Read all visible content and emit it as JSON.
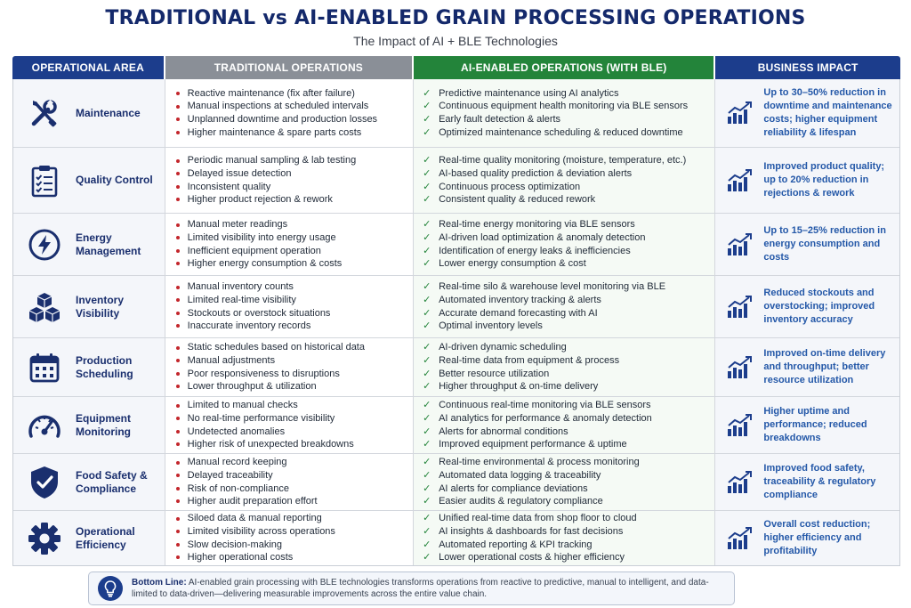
{
  "title": "TRADITIONAL vs AI-ENABLED GRAIN PROCESSING OPERATIONS",
  "subtitle": "The Impact of AI + BLE Technologies",
  "headers": {
    "area": "OPERATIONAL AREA",
    "traditional": "TRADITIONAL OPERATIONS",
    "ai": "AI-ENABLED OPERATIONS (WITH BLE)",
    "business": "BUSINESS IMPACT"
  },
  "colors": {
    "navy": "#1c3d8c",
    "gray": "#8a8f97",
    "green": "#23843a",
    "bullet_red": "#c3262c",
    "impact_blue": "#2458a8"
  },
  "rows": [
    {
      "area": "Maintenance",
      "icon": "wrench-screwdriver-icon",
      "traditional": [
        "Reactive maintenance (fix after failure)",
        "Manual inspections at scheduled intervals",
        "Unplanned downtime and production losses",
        "Higher maintenance & spare parts costs"
      ],
      "ai": [
        "Predictive maintenance using AI analytics",
        "Continuous equipment health monitoring via BLE sensors",
        "Early fault detection & alerts",
        "Optimized maintenance scheduling & reduced downtime"
      ],
      "impact": "Up to 30–50% reduction in downtime and maintenance costs; higher equipment reliability & lifespan"
    },
    {
      "area": "Quality Control",
      "icon": "clipboard-checklist-icon",
      "traditional": [
        "Periodic manual sampling & lab testing",
        "Delayed issue detection",
        "Inconsistent quality",
        "Higher product rejection & rework"
      ],
      "ai": [
        "Real-time quality monitoring (moisture, temperature, etc.)",
        "AI-based quality prediction & deviation alerts",
        "Continuous process optimization",
        "Consistent quality & reduced rework"
      ],
      "impact": "Improved product quality; up to 20% reduction in rejections & rework"
    },
    {
      "area": "Energy Management",
      "icon": "lightning-bolt-icon",
      "traditional": [
        "Manual meter readings",
        "Limited visibility into energy usage",
        "Inefficient equipment operation",
        "Higher energy consumption & costs"
      ],
      "ai": [
        "Real-time energy monitoring via BLE sensors",
        "AI-driven load optimization & anomaly detection",
        "Identification of energy leaks & inefficiencies",
        "Lower energy consumption & cost"
      ],
      "impact": "Up to 15–25% reduction in energy consumption and costs"
    },
    {
      "area": "Inventory Visibility",
      "icon": "stacked-boxes-icon",
      "traditional": [
        "Manual inventory counts",
        "Limited real-time visibility",
        "Stockouts or overstock situations",
        "Inaccurate inventory records"
      ],
      "ai": [
        "Real-time silo & warehouse level monitoring via BLE",
        "Automated inventory tracking & alerts",
        "Accurate demand forecasting with AI",
        "Optimal inventory levels"
      ],
      "impact": "Reduced stockouts and overstocking; improved inventory accuracy"
    },
    {
      "area": "Production Scheduling",
      "icon": "calendar-icon",
      "traditional": [
        "Static schedules based on historical data",
        "Manual adjustments",
        "Poor responsiveness to disruptions",
        "Lower throughput & utilization"
      ],
      "ai": [
        "AI-driven dynamic scheduling",
        "Real-time data from equipment & process",
        "Better resource utilization",
        "Higher throughput & on-time delivery"
      ],
      "impact": "Improved on-time delivery and throughput; better resource utilization"
    },
    {
      "area": "Equipment Monitoring",
      "icon": "gauge-icon",
      "traditional": [
        "Limited to manual checks",
        "No real-time performance visibility",
        "Undetected anomalies",
        "Higher risk of unexpected breakdowns"
      ],
      "ai": [
        "Continuous real-time monitoring via BLE sensors",
        "AI analytics for performance & anomaly detection",
        "Alerts for abnormal conditions",
        "Improved equipment performance & uptime"
      ],
      "impact": "Higher uptime and performance; reduced breakdowns"
    },
    {
      "area": "Food Safety & Compliance",
      "icon": "shield-check-icon",
      "traditional": [
        "Manual record keeping",
        "Delayed traceability",
        "Risk of non-compliance",
        "Higher audit preparation effort"
      ],
      "ai": [
        "Real-time environmental & process monitoring",
        "Automated data logging & traceability",
        "AI alerts for compliance deviations",
        "Easier audits & regulatory compliance"
      ],
      "impact": "Improved food safety, traceability & regulatory compliance"
    },
    {
      "area": "Operational Efficiency",
      "icon": "gear-icon",
      "traditional": [
        "Siloed data & manual reporting",
        "Limited visibility across operations",
        "Slow decision-making",
        "Higher operational costs"
      ],
      "ai": [
        "Unified real-time data from shop floor to cloud",
        "AI insights & dashboards for fast decisions",
        "Automated reporting & KPI tracking",
        "Lower operational costs & higher efficiency"
      ],
      "impact": "Overall cost reduction; higher efficiency and profitability"
    }
  ],
  "bottom_line": {
    "label": "Bottom Line:",
    "text": "AI-enabled grain processing with BLE technologies transforms operations from reactive to predictive, manual to intelligent, and data-limited to data-driven—delivering measurable improvements across the entire value chain.",
    "icon": "lightbulb-icon"
  }
}
